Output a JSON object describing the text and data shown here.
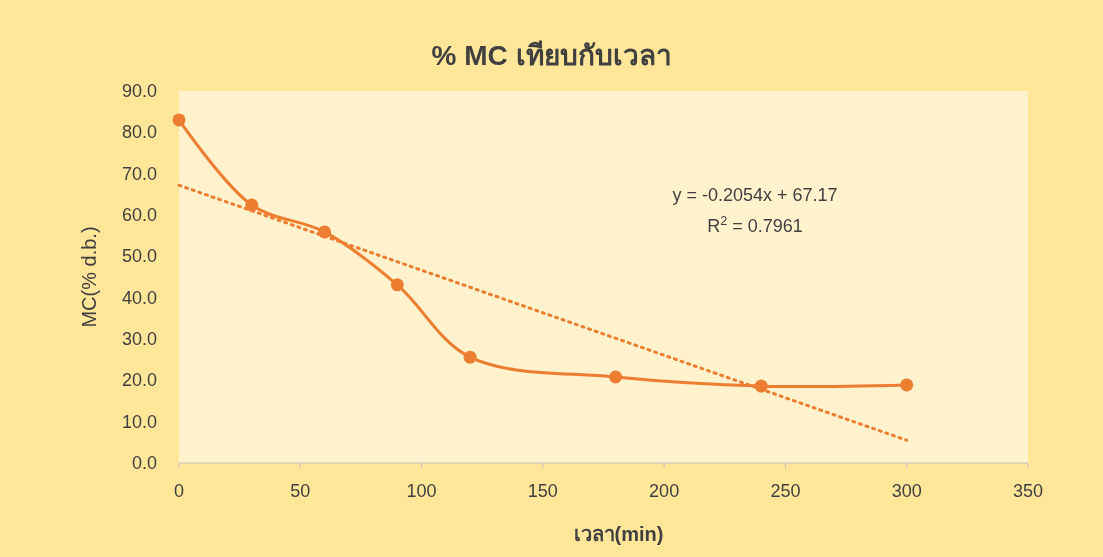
{
  "chart_data": {
    "type": "line",
    "title": "% MC เทียบกับเวลา",
    "xlabel": "เวลา(min)",
    "ylabel": "MC(% d.b.)",
    "x": [
      0,
      30,
      60,
      90,
      120,
      180,
      240,
      300
    ],
    "series": [
      {
        "color": "#ed7d31",
        "values": [
          83.0,
          62.4,
          55.9,
          43.1,
          25.6,
          20.8,
          18.6,
          18.9
        ],
        "marker": "circle",
        "line_style": "solid"
      },
      {
        "color": "#ed7d31",
        "x": [
          0,
          300
        ],
        "values": [
          67.2,
          5.5
        ],
        "marker": "none",
        "line_style": "dotted"
      }
    ],
    "annotations": [
      {
        "text": "y = -0.2054x + 67.17"
      },
      {
        "text": "R$^{2}$ = 0.7961"
      }
    ],
    "xlim": [
      0,
      350
    ],
    "xticks": [
      0,
      50,
      100,
      150,
      200,
      250,
      300,
      350
    ],
    "ylim": [
      0,
      90
    ],
    "yticks": [
      {
        "value": 0,
        "label": "0.0"
      },
      {
        "value": 10,
        "label": "10.0"
      },
      {
        "value": 20,
        "label": "20.0"
      },
      {
        "value": 30,
        "label": "30.0"
      },
      {
        "value": 40,
        "label": "40.0"
      },
      {
        "value": 50,
        "label": "50.0"
      },
      {
        "value": 60,
        "label": "60.0"
      },
      {
        "value": 70,
        "label": "70.0"
      },
      {
        "value": 80,
        "label": "80.0"
      },
      {
        "value": 90,
        "label": "90.0"
      }
    ],
    "grid": false
  }
}
